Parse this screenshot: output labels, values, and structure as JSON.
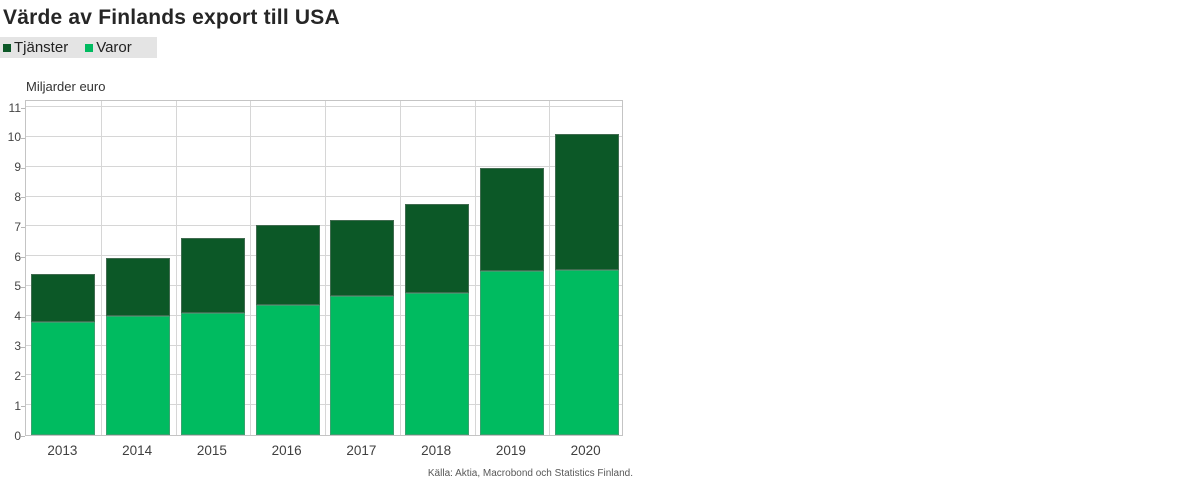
{
  "title": "Värde av Finlands export till USA",
  "axis_title": "Miljarder euro",
  "source": "Källa: Aktia, Macrobond och Statistics Finland.",
  "legend": {
    "position": "top-left",
    "items": [
      {
        "label": "Tjänster",
        "color": "#0C5827"
      },
      {
        "label": "Varor",
        "color": "#00BB60"
      }
    ]
  },
  "colors": {
    "tjanster": "#0C5827",
    "varor": "#00BB60",
    "gridline": "#d6d6d6",
    "frame": "#c4c4c4",
    "legend_background": "#e4e4e4",
    "title_text": "#262626",
    "tick_text": "#444444",
    "source_text": "#585858"
  },
  "chart_data": {
    "type": "bar",
    "stacked": true,
    "title": "Värde av Finlands export till USA",
    "ylabel": "Miljarder euro",
    "xlabel": "",
    "categories": [
      "2013",
      "2014",
      "2015",
      "2016",
      "2017",
      "2018",
      "2019",
      "2020"
    ],
    "series": [
      {
        "name": "Varor",
        "color": "#00BB60",
        "values": [
          3.8,
          4.0,
          4.1,
          4.35,
          4.65,
          4.75,
          5.5,
          5.55
        ]
      },
      {
        "name": "Tjänster",
        "color": "#0C5827",
        "values": [
          1.6,
          1.95,
          2.5,
          2.7,
          2.55,
          3.0,
          3.45,
          4.55
        ]
      }
    ],
    "totals": [
      5.4,
      5.95,
      6.6,
      7.05,
      7.2,
      7.75,
      8.95,
      10.1
    ],
    "ylim": [
      0,
      11.27
    ],
    "yticks": [
      0,
      1,
      2,
      3,
      4,
      5,
      6,
      7,
      8,
      9,
      10,
      11
    ],
    "grid": true,
    "legend_position": "top-left"
  }
}
